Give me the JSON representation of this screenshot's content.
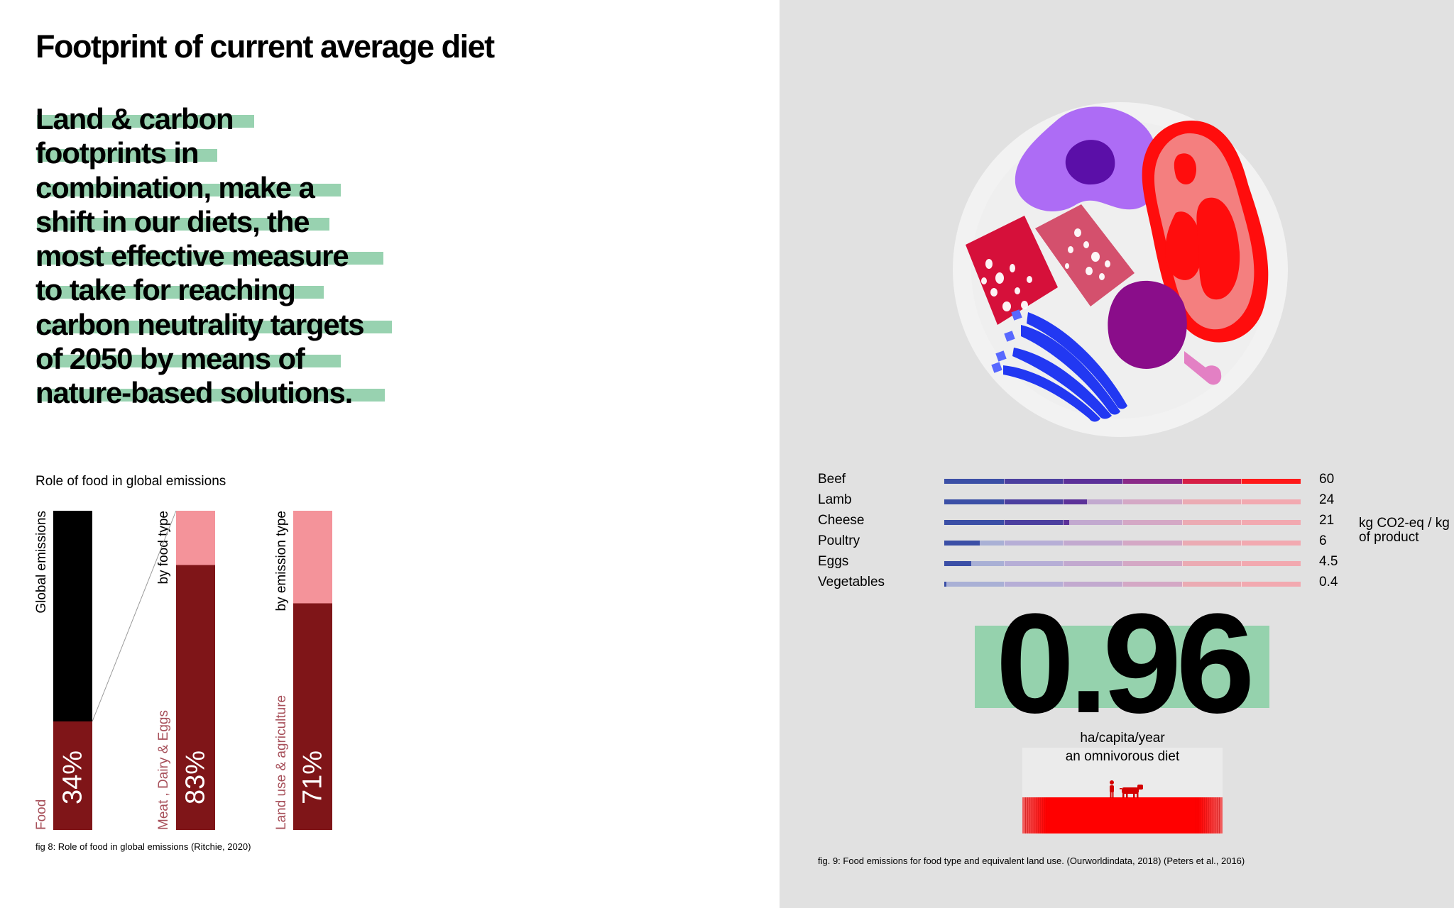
{
  "left": {
    "title": "Footprint of current average diet",
    "highlight_lines": [
      "Land & carbon",
      "footprints in",
      "combination, make a",
      "shift in our diets, the",
      "most effective measure",
      "to take for reaching",
      "carbon neutrality targets",
      "of 2050 by means of",
      "nature-based solutions."
    ],
    "emissions_title": "Role of food in global emissions",
    "caption": "fig 8: Role of food in global emissions (Ritchie, 2020)"
  },
  "right": {
    "unit_label": "kg CO2-eq / kg of product",
    "metric": {
      "value": "0.96",
      "unit": "ha/capita/year",
      "description": "an omnivorous diet"
    },
    "caption": "fig. 9: Food emissions for food type and equivalent land use. (Ourworldindata, 2018) (Peters et al., 2016)"
  },
  "chart_data": [
    {
      "type": "bar",
      "title": "Role of food in global emissions",
      "stacked": true,
      "orientation": "vertical",
      "bars": [
        {
          "axis_label": "Global emissions",
          "segment_label": "Food",
          "value_label": "34%",
          "value": 34
        },
        {
          "axis_label": "by food type",
          "segment_label": "Meat , Dairy & Eggs",
          "value_label": "83%",
          "value": 83
        },
        {
          "axis_label": "by emission type",
          "segment_label": "Land use & agriculture",
          "value_label": "71%",
          "value": 71
        }
      ],
      "ylim": [
        0,
        100
      ],
      "colors": {
        "remainder_first": "#000000",
        "remainder_other": "#f4939a",
        "highlight": "#7f1518"
      }
    },
    {
      "type": "bar",
      "orientation": "horizontal",
      "categories": [
        "Beef",
        "Lamb",
        "Cheese",
        "Poultry",
        "Eggs",
        "Vegetables"
      ],
      "values": [
        60,
        24,
        21,
        6,
        4.5,
        0.4
      ],
      "value_labels": [
        "60",
        "24",
        "21",
        "6",
        "4.5",
        "0.4"
      ],
      "xlim": [
        0,
        60
      ],
      "unit": "kg CO2-eq / kg of product",
      "gradient_colors": [
        "#3b4fa6",
        "#5c3199",
        "#a3287c",
        "#ff1a1a"
      ]
    }
  ],
  "colors": {
    "highlight_green": "#98d2b0",
    "right_background": "#e1e1e1",
    "metric_box": "#95d2ad",
    "land_bar": "#ff0000"
  },
  "icons": [
    "person-icon",
    "cow-icon",
    "plate-illustration"
  ]
}
